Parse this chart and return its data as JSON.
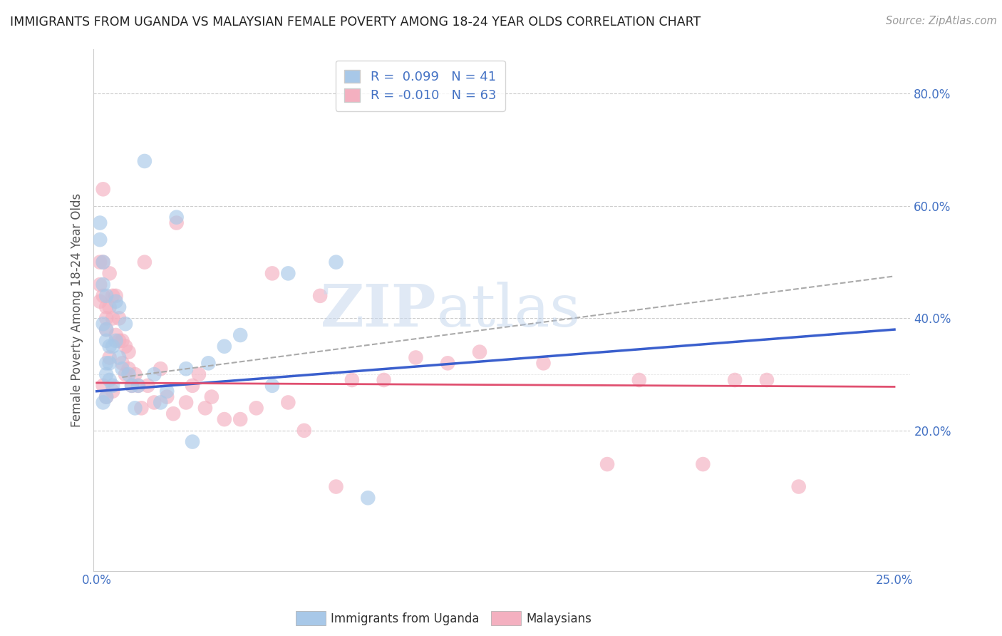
{
  "title": "IMMIGRANTS FROM UGANDA VS MALAYSIAN FEMALE POVERTY AMONG 18-24 YEAR OLDS CORRELATION CHART",
  "source": "Source: ZipAtlas.com",
  "ylabel": "Female Poverty Among 18-24 Year Olds",
  "xlim": [
    -0.001,
    0.255
  ],
  "ylim": [
    -0.05,
    0.88
  ],
  "yticks": [
    0.0,
    0.2,
    0.4,
    0.6,
    0.8
  ],
  "yticklabels": [
    "",
    "20.0%",
    "40.0%",
    "60.0%",
    "80.0%"
  ],
  "xtick_positions": [
    0.0,
    0.25
  ],
  "xticklabels": [
    "0.0%",
    "25.0%"
  ],
  "legend1_label": "R =  0.099   N = 41",
  "legend2_label": "R = -0.010   N = 63",
  "blue_color": "#a8c8e8",
  "pink_color": "#f4b0c0",
  "blue_line_color": "#3a5fcd",
  "pink_line_color": "#e05070",
  "dash_line_color": "#aaaaaa",
  "grid_color": "#cccccc",
  "tick_color": "#4472c4",
  "watermark_zip": "ZIP",
  "watermark_atlas": "atlas",
  "blue_scatter_x": [
    0.001,
    0.001,
    0.002,
    0.002,
    0.002,
    0.003,
    0.003,
    0.003,
    0.003,
    0.003,
    0.004,
    0.004,
    0.004,
    0.005,
    0.005,
    0.006,
    0.006,
    0.007,
    0.007,
    0.008,
    0.009,
    0.01,
    0.011,
    0.012,
    0.013,
    0.015,
    0.018,
    0.02,
    0.022,
    0.025,
    0.028,
    0.03,
    0.035,
    0.04,
    0.045,
    0.055,
    0.06,
    0.075,
    0.085,
    0.003,
    0.002
  ],
  "blue_scatter_y": [
    0.57,
    0.54,
    0.5,
    0.46,
    0.39,
    0.44,
    0.38,
    0.36,
    0.32,
    0.3,
    0.35,
    0.32,
    0.29,
    0.35,
    0.28,
    0.43,
    0.36,
    0.42,
    0.33,
    0.31,
    0.39,
    0.3,
    0.28,
    0.24,
    0.28,
    0.68,
    0.3,
    0.25,
    0.27,
    0.58,
    0.31,
    0.18,
    0.32,
    0.35,
    0.37,
    0.28,
    0.48,
    0.5,
    0.08,
    0.26,
    0.25
  ],
  "pink_scatter_x": [
    0.001,
    0.001,
    0.001,
    0.002,
    0.002,
    0.002,
    0.003,
    0.003,
    0.003,
    0.004,
    0.004,
    0.005,
    0.005,
    0.006,
    0.006,
    0.007,
    0.007,
    0.008,
    0.008,
    0.009,
    0.009,
    0.01,
    0.01,
    0.011,
    0.012,
    0.013,
    0.014,
    0.015,
    0.016,
    0.018,
    0.02,
    0.022,
    0.024,
    0.025,
    0.028,
    0.03,
    0.032,
    0.034,
    0.036,
    0.04,
    0.045,
    0.05,
    0.055,
    0.06,
    0.065,
    0.07,
    0.075,
    0.08,
    0.09,
    0.1,
    0.11,
    0.12,
    0.14,
    0.16,
    0.17,
    0.19,
    0.2,
    0.21,
    0.22,
    0.002,
    0.003,
    0.004,
    0.005
  ],
  "pink_scatter_y": [
    0.5,
    0.46,
    0.43,
    0.63,
    0.5,
    0.44,
    0.42,
    0.4,
    0.38,
    0.48,
    0.42,
    0.44,
    0.4,
    0.44,
    0.37,
    0.4,
    0.36,
    0.36,
    0.32,
    0.35,
    0.3,
    0.34,
    0.31,
    0.28,
    0.3,
    0.28,
    0.24,
    0.5,
    0.28,
    0.25,
    0.31,
    0.26,
    0.23,
    0.57,
    0.25,
    0.28,
    0.3,
    0.24,
    0.26,
    0.22,
    0.22,
    0.24,
    0.48,
    0.25,
    0.2,
    0.44,
    0.1,
    0.29,
    0.29,
    0.33,
    0.32,
    0.34,
    0.32,
    0.14,
    0.29,
    0.14,
    0.29,
    0.29,
    0.1,
    0.28,
    0.26,
    0.33,
    0.27
  ],
  "blue_line_x0": 0.0,
  "blue_line_y0": 0.27,
  "blue_line_x1": 0.25,
  "blue_line_y1": 0.38,
  "pink_line_x0": 0.0,
  "pink_line_y0": 0.285,
  "pink_line_x1": 0.25,
  "pink_line_y1": 0.278,
  "dash_line_x0": 0.008,
  "dash_line_y0": 0.295,
  "dash_line_x1": 0.25,
  "dash_line_y1": 0.475
}
